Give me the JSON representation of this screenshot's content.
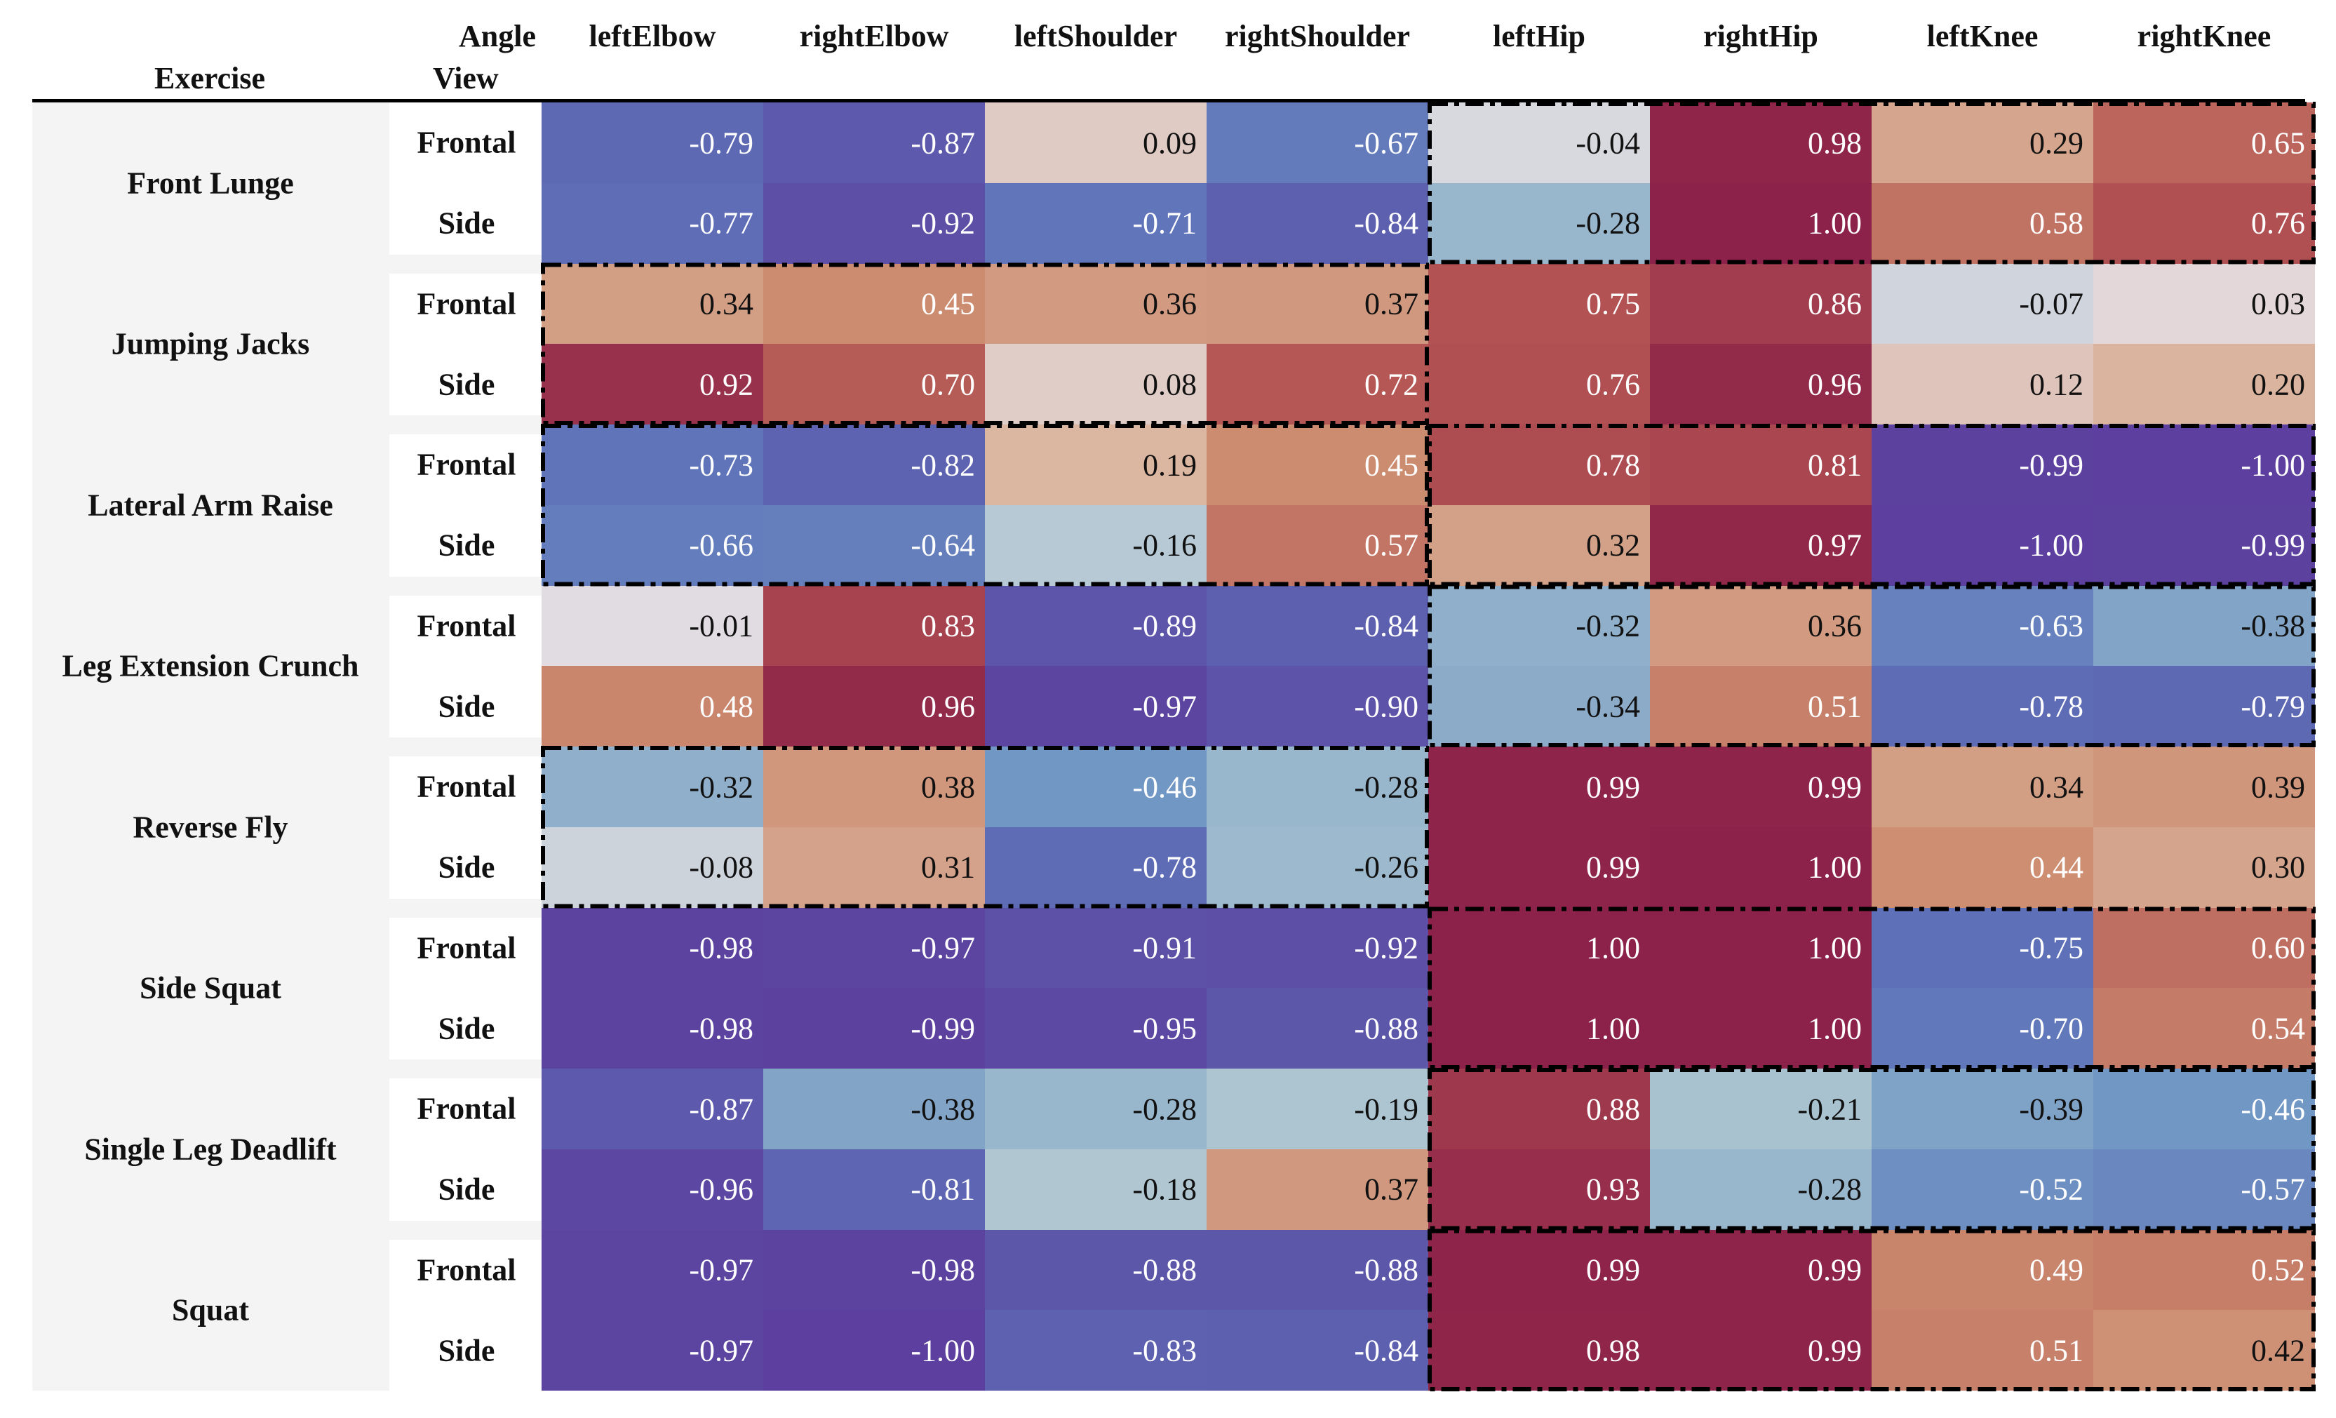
{
  "table": {
    "exercise_header": "Exercise",
    "angle_header": "Angle",
    "view_header": "View"
  },
  "chart_data": {
    "type": "heatmap",
    "columns": [
      "leftElbow",
      "rightElbow",
      "leftShoulder",
      "rightShoulder",
      "leftHip",
      "rightHip",
      "leftKnee",
      "rightKnee"
    ],
    "rows": [
      {
        "exercise": "Front Lunge",
        "view": "Frontal",
        "values": [
          -0.79,
          -0.87,
          0.09,
          -0.67,
          -0.04,
          0.98,
          0.29,
          0.65
        ]
      },
      {
        "exercise": "Front Lunge",
        "view": "Side",
        "values": [
          -0.77,
          -0.92,
          -0.71,
          -0.84,
          -0.28,
          1.0,
          0.58,
          0.76
        ]
      },
      {
        "exercise": "Jumping Jacks",
        "view": "Frontal",
        "values": [
          0.34,
          0.45,
          0.36,
          0.37,
          0.75,
          0.86,
          -0.07,
          0.03
        ]
      },
      {
        "exercise": "Jumping Jacks",
        "view": "Side",
        "values": [
          0.92,
          0.7,
          0.08,
          0.72,
          0.76,
          0.96,
          0.12,
          0.2
        ]
      },
      {
        "exercise": "Lateral Arm Raise",
        "view": "Frontal",
        "values": [
          -0.73,
          -0.82,
          0.19,
          0.45,
          0.78,
          0.81,
          -0.99,
          -1.0
        ]
      },
      {
        "exercise": "Lateral Arm Raise",
        "view": "Side",
        "values": [
          -0.66,
          -0.64,
          -0.16,
          0.57,
          0.32,
          0.97,
          -1.0,
          -0.99
        ]
      },
      {
        "exercise": "Leg Extension Crunch",
        "view": "Frontal",
        "values": [
          -0.01,
          0.83,
          -0.89,
          -0.84,
          -0.32,
          0.36,
          -0.63,
          -0.38
        ]
      },
      {
        "exercise": "Leg Extension Crunch",
        "view": "Side",
        "values": [
          0.48,
          0.96,
          -0.97,
          -0.9,
          -0.34,
          0.51,
          -0.78,
          -0.79
        ]
      },
      {
        "exercise": "Reverse Fly",
        "view": "Frontal",
        "values": [
          -0.32,
          0.38,
          -0.46,
          -0.28,
          0.99,
          0.99,
          0.34,
          0.39
        ]
      },
      {
        "exercise": "Reverse Fly",
        "view": "Side",
        "values": [
          -0.08,
          0.31,
          -0.78,
          -0.26,
          0.99,
          1.0,
          0.44,
          0.3
        ]
      },
      {
        "exercise": "Side Squat",
        "view": "Frontal",
        "values": [
          -0.98,
          -0.97,
          -0.91,
          -0.92,
          1.0,
          1.0,
          -0.75,
          0.6
        ]
      },
      {
        "exercise": "Side Squat",
        "view": "Side",
        "values": [
          -0.98,
          -0.99,
          -0.95,
          -0.88,
          1.0,
          1.0,
          -0.7,
          0.54
        ]
      },
      {
        "exercise": "Single Leg Deadlift",
        "view": "Frontal",
        "values": [
          -0.87,
          -0.38,
          -0.28,
          -0.19,
          0.88,
          -0.21,
          -0.39,
          -0.46
        ]
      },
      {
        "exercise": "Single Leg Deadlift",
        "view": "Side",
        "values": [
          -0.96,
          -0.81,
          -0.18,
          0.37,
          0.93,
          -0.28,
          -0.52,
          -0.57
        ]
      },
      {
        "exercise": "Squat",
        "view": "Frontal",
        "values": [
          -0.97,
          -0.98,
          -0.88,
          -0.88,
          0.99,
          0.99,
          0.49,
          0.52
        ]
      },
      {
        "exercise": "Squat",
        "view": "Side",
        "values": [
          -0.97,
          -1.0,
          -0.83,
          -0.84,
          0.98,
          0.99,
          0.51,
          0.42
        ]
      }
    ],
    "highlight_boxes": [
      {
        "exercise": "Front Lunge",
        "columns": [
          "leftHip",
          "rightHip",
          "leftKnee",
          "rightKnee"
        ]
      },
      {
        "exercise": "Jumping Jacks",
        "columns": [
          "leftElbow",
          "rightElbow",
          "leftShoulder",
          "rightShoulder"
        ]
      },
      {
        "exercise": "Lateral Arm Raise",
        "columns": [
          "leftElbow",
          "rightElbow",
          "leftShoulder",
          "rightShoulder"
        ]
      },
      {
        "exercise": "Lateral Arm Raise",
        "columns": [
          "leftHip",
          "rightHip",
          "leftKnee",
          "rightKnee"
        ]
      },
      {
        "exercise": "Leg Extension Crunch",
        "columns": [
          "leftHip",
          "rightHip",
          "leftKnee",
          "rightKnee"
        ]
      },
      {
        "exercise": "Reverse Fly",
        "columns": [
          "leftElbow",
          "rightElbow",
          "leftShoulder",
          "rightShoulder"
        ]
      },
      {
        "exercise": "Side Squat",
        "columns": [
          "leftHip",
          "rightHip",
          "leftKnee",
          "rightKnee"
        ]
      },
      {
        "exercise": "Single Leg Deadlift",
        "columns": [
          "leftHip",
          "rightHip",
          "leftKnee",
          "rightKnee"
        ]
      },
      {
        "exercise": "Squat",
        "columns": [
          "leftHip",
          "rightHip",
          "leftKnee",
          "rightKnee"
        ]
      }
    ],
    "color_scale": {
      "min": -1,
      "max": 1,
      "low_color": "#5c3f9e",
      "mid_color": "#e4dde3",
      "high_color": "#8c2249"
    }
  }
}
